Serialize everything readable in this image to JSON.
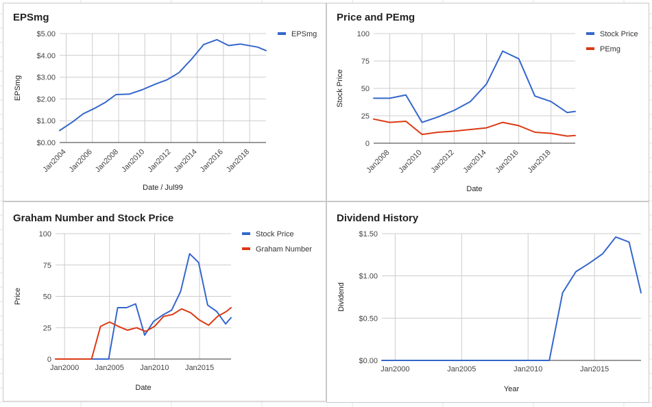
{
  "chart_data": [
    {
      "type": "line",
      "title": "EPSmg",
      "xlabel": "Date / Jul99",
      "ylabel": "EPSmg",
      "xlim": [
        2003.5,
        2019.25
      ],
      "ylim": [
        0,
        5
      ],
      "yticks": [
        0,
        1,
        2,
        3,
        4,
        5
      ],
      "ytick_labels": [
        "$0.00",
        "$1.00",
        "$2.00",
        "$3.00",
        "$4.00",
        "$5.00"
      ],
      "xticks": [
        2004,
        2006,
        2008,
        2010,
        2012,
        2014,
        2016,
        2018
      ],
      "xtick_labels": [
        "Jan2004",
        "Jan2006",
        "Jan2008",
        "Jan2010",
        "Jan2012",
        "Jan2014",
        "Jan2016",
        "Jan2018"
      ],
      "xtick_rotation": -45,
      "grid": true,
      "legend_position": "top-right",
      "series": [
        {
          "name": "EPSmg",
          "color": "#3366cc",
          "x": [
            2003.5,
            2004.5,
            2005.3,
            2006.2,
            2007.0,
            2007.8,
            2008.8,
            2009.8,
            2010.8,
            2011.7,
            2012.6,
            2013.6,
            2014.5,
            2015.5,
            2016.4,
            2017.3,
            2018.6,
            2019.25
          ],
          "y": [
            0.55,
            0.95,
            1.32,
            1.58,
            1.85,
            2.2,
            2.22,
            2.42,
            2.68,
            2.88,
            3.2,
            3.85,
            4.5,
            4.72,
            4.45,
            4.52,
            4.38,
            4.22
          ]
        }
      ]
    },
    {
      "type": "line",
      "title": "Price and PEmg",
      "xlabel": "Date",
      "ylabel": "Stock Price",
      "xlim": [
        2007.0,
        2019.5
      ],
      "ylim": [
        0,
        100
      ],
      "yticks": [
        0,
        25,
        50,
        75,
        100
      ],
      "ytick_labels": [
        "0",
        "25",
        "50",
        "75",
        "100"
      ],
      "xticks": [
        2008,
        2010,
        2012,
        2014,
        2016,
        2018
      ],
      "xtick_labels": [
        "Jan2008",
        "Jan2010",
        "Jan2012",
        "Jan2014",
        "Jan2016",
        "Jan2018"
      ],
      "xtick_rotation": -45,
      "grid": true,
      "legend_position": "top-right",
      "series": [
        {
          "name": "Stock Price",
          "color": "#3366cc",
          "x": [
            2007.0,
            2008.0,
            2009.0,
            2010.0,
            2011.0,
            2012.0,
            2013.0,
            2014.0,
            2015.0,
            2016.0,
            2017.0,
            2018.0,
            2019.0,
            2019.5
          ],
          "y": [
            41,
            41,
            44,
            19,
            24,
            30,
            38,
            54,
            84,
            77,
            43,
            38,
            28,
            29
          ]
        },
        {
          "name": "PEmg",
          "color": "#dc3912",
          "x": [
            2007.0,
            2008.0,
            2009.0,
            2010.0,
            2011.0,
            2012.0,
            2013.0,
            2014.0,
            2015.0,
            2016.0,
            2017.0,
            2018.0,
            2019.0,
            2019.5
          ],
          "y": [
            22,
            19,
            20,
            8,
            10,
            11,
            12.5,
            14,
            19,
            16,
            10,
            9,
            6.5,
            7
          ]
        }
      ]
    },
    {
      "type": "line",
      "title": "Graham Number and Stock Price",
      "xlabel": "Date",
      "ylabel": "Price",
      "xlim": [
        1999,
        2018.5
      ],
      "ylim": [
        0,
        100
      ],
      "yticks": [
        0,
        25,
        50,
        75,
        100
      ],
      "ytick_labels": [
        "0",
        "25",
        "50",
        "75",
        "100"
      ],
      "xticks": [
        2000,
        2005,
        2010,
        2015
      ],
      "xtick_labels": [
        "Jan2000",
        "Jan2005",
        "Jan2010",
        "Jan2015"
      ],
      "grid": true,
      "legend_position": "top-right",
      "series": [
        {
          "name": "Stock Price",
          "color": "#3366cc",
          "x": [
            1999,
            2000,
            2001,
            2002,
            2003,
            2004,
            2004.9,
            2005.9,
            2006.9,
            2007.9,
            2008.9,
            2009.9,
            2010.9,
            2011.9,
            2012.9,
            2013.9,
            2014.9,
            2015.9,
            2016.9,
            2017.9,
            2018.5
          ],
          "y": [
            0,
            0,
            0,
            0,
            0,
            0,
            0,
            41,
            41,
            44,
            19,
            30,
            35,
            39,
            54,
            84,
            77,
            43,
            38,
            28,
            33
          ]
        },
        {
          "name": "Graham Number",
          "color": "#dc3912",
          "x": [
            1999,
            2000,
            2001,
            2002,
            2003,
            2004,
            2005,
            2006,
            2007,
            2008,
            2009,
            2010,
            2011,
            2012,
            2013,
            2014,
            2015,
            2016,
            2017,
            2018,
            2018.5
          ],
          "y": [
            0,
            0,
            0,
            0,
            0,
            26,
            29.5,
            26,
            23,
            25,
            22,
            26,
            34,
            35.5,
            40,
            37,
            31,
            27,
            34,
            38,
            41
          ]
        }
      ]
    },
    {
      "type": "line",
      "title": "Dividend History",
      "xlabel": "Year",
      "ylabel": "Dividend",
      "xlim": [
        1999,
        2018.5
      ],
      "ylim": [
        0,
        1.5
      ],
      "yticks": [
        0,
        0.5,
        1.0,
        1.5
      ],
      "ytick_labels": [
        "$0.00",
        "$0.50",
        "$1.00",
        "$1.50"
      ],
      "xticks": [
        2000,
        2005,
        2010,
        2015
      ],
      "xtick_labels": [
        "Jan2000",
        "Jan2005",
        "Jan2010",
        "Jan2015"
      ],
      "grid": true,
      "legend_position": "none",
      "series": [
        {
          "name": "",
          "color": "#3366cc",
          "x": [
            1999,
            2000,
            2001,
            2002,
            2003,
            2004,
            2005,
            2006,
            2007,
            2008,
            2009,
            2010,
            2011,
            2011.6,
            2012.6,
            2013.6,
            2014.6,
            2015.6,
            2016.6,
            2017.6,
            2018.5
          ],
          "y": [
            0,
            0,
            0,
            0,
            0,
            0,
            0,
            0,
            0,
            0,
            0,
            0,
            0,
            0,
            0.8,
            1.05,
            1.15,
            1.26,
            1.46,
            1.4,
            0.8
          ]
        }
      ]
    }
  ]
}
